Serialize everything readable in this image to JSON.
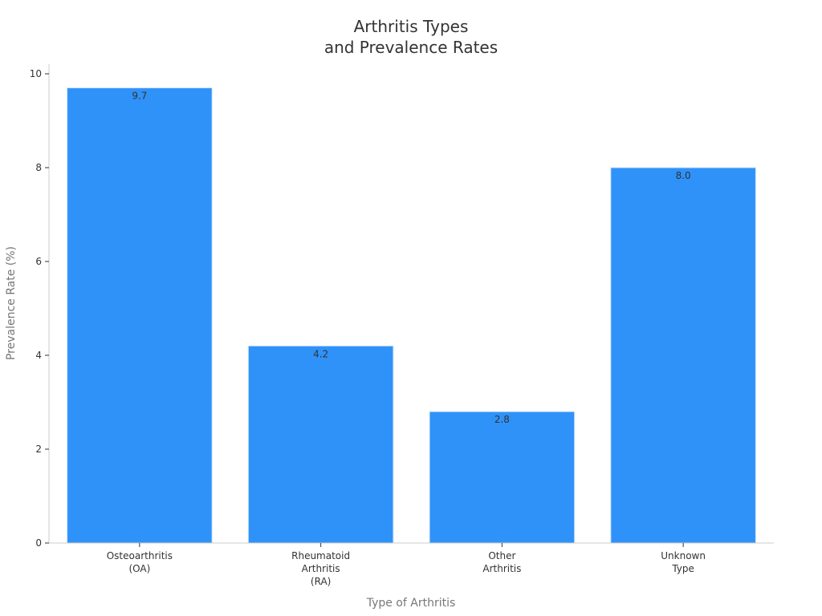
{
  "chart_data": {
    "type": "bar",
    "title_lines": [
      "Arthritis Types",
      "and Prevalence Rates"
    ],
    "xlabel": "Type of Arthritis",
    "ylabel": "Prevalence Rate (%)",
    "categories": [
      [
        "Osteoarthritis",
        "(OA)"
      ],
      [
        "Rheumatoid",
        "Arthritis",
        "(RA)"
      ],
      [
        "Other",
        "Arthritis"
      ],
      [
        "Unknown",
        "Type"
      ]
    ],
    "values": [
      9.7,
      4.2,
      2.8,
      8.0
    ],
    "data_labels": [
      "9.7",
      "4.2",
      "2.8",
      "8.0"
    ],
    "ylim": [
      0,
      10
    ],
    "yticks": [
      0,
      2,
      4,
      6,
      8,
      10
    ],
    "grid": false,
    "bar_color": "#2f92f8",
    "bar_edge_color": "#cfe3fb",
    "axis_color": "#cccccc"
  }
}
